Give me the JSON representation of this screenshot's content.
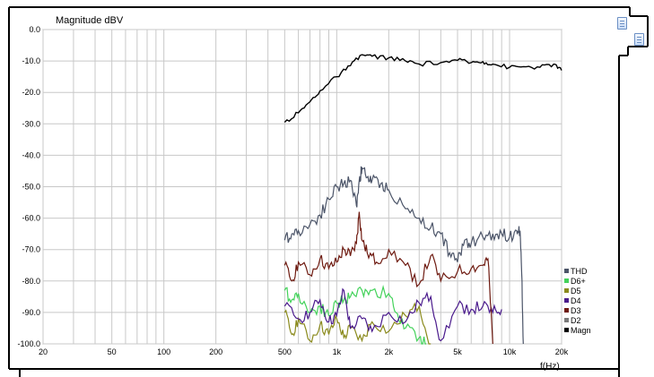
{
  "chart_data": {
    "type": "line",
    "title": "",
    "ylabel": "Magnitude dBV",
    "xlabel": "f(Hz)",
    "x_scale": "log",
    "xlim": [
      20,
      20000
    ],
    "ylim": [
      -100,
      0
    ],
    "grid": true,
    "legend_position": "bottom-right",
    "y_ticks": [
      "0.0",
      "-10.0",
      "-20.0",
      "-30.0",
      "-40.0",
      "-50.0",
      "-60.0",
      "-70.0",
      "-80.0",
      "-90.0",
      "-100.0"
    ],
    "x_ticks": [
      {
        "value": 20,
        "label": "20"
      },
      {
        "value": 50,
        "label": "50"
      },
      {
        "value": 100,
        "label": "100"
      },
      {
        "value": 200,
        "label": "200"
      },
      {
        "value": 500,
        "label": "500"
      },
      {
        "value": 1000,
        "label": "1k"
      },
      {
        "value": 2000,
        "label": "2k"
      },
      {
        "value": 5000,
        "label": "5k"
      },
      {
        "value": 10000,
        "label": "10k"
      },
      {
        "value": 20000,
        "label": "20k"
      }
    ],
    "series": [
      {
        "name": "Magn",
        "color": "#000000",
        "x": [
          500,
          600,
          700,
          800,
          1000,
          1200,
          1400,
          1600,
          2000,
          2500,
          3000,
          4000,
          5000,
          6000,
          7000,
          8000,
          10000,
          12000,
          15000,
          18000,
          20000
        ],
        "y": [
          -29.5,
          -26.5,
          -23.0,
          -19.5,
          -15.0,
          -11.5,
          -8.0,
          -8.5,
          -9.0,
          -10.0,
          -11.0,
          -10.5,
          -9.8,
          -10.5,
          -10.2,
          -11.0,
          -12.0,
          -11.8,
          -12.0,
          -11.0,
          -13.0
        ]
      },
      {
        "name": "THD",
        "color": "#4b5468",
        "x": [
          500,
          550,
          600,
          700,
          800,
          900,
          1000,
          1100,
          1200,
          1300,
          1350,
          1400,
          1500,
          1600,
          1800,
          2000,
          2500,
          3000,
          3500,
          4000,
          4500,
          5000,
          5500,
          6000,
          7000,
          8000,
          9000,
          10000,
          11000,
          11500,
          11800,
          12000
        ],
        "y": [
          -67,
          -65,
          -64,
          -62,
          -59,
          -54,
          -50,
          -49,
          -48,
          -56,
          -48,
          -44,
          -47,
          -48,
          -49,
          -51,
          -57,
          -60,
          -63,
          -65,
          -71,
          -74,
          -67,
          -68,
          -66,
          -65,
          -65,
          -66,
          -64,
          -64,
          -80,
          -100
        ]
      },
      {
        "name": "D6+",
        "color": "#43d25a",
        "x": [
          500,
          550,
          600,
          700,
          800,
          900,
          1000,
          1100,
          1200,
          1400,
          1600,
          2000,
          2200,
          2500,
          3000,
          3300
        ],
        "y": [
          -83,
          -86,
          -84,
          -90,
          -88,
          -91,
          -87,
          -86,
          -85,
          -83,
          -83,
          -84,
          -90,
          -95,
          -98,
          -100
        ]
      },
      {
        "name": "D5",
        "color": "#8a8a1c",
        "x": [
          500,
          550,
          600,
          700,
          800,
          900,
          1000,
          1100,
          1200,
          1400,
          1600,
          2000,
          2500,
          3000,
          3500
        ],
        "y": [
          -90,
          -97,
          -92,
          -99,
          -94,
          -97,
          -92,
          -98,
          -95,
          -99,
          -93,
          -96,
          -91,
          -88,
          -100
        ]
      },
      {
        "name": "D4",
        "color": "#4a1a8c",
        "x": [
          500,
          600,
          700,
          800,
          900,
          1000,
          1100,
          1200,
          1400,
          1600,
          2000,
          2500,
          3000,
          3500,
          4000,
          5000,
          6000,
          7000,
          8000,
          9000
        ],
        "y": [
          -88,
          -92,
          -90,
          -86,
          -93,
          -91,
          -83,
          -95,
          -92,
          -96,
          -90,
          -93,
          -87,
          -85,
          -99,
          -88,
          -89,
          -88,
          -90,
          -89
        ]
      },
      {
        "name": "D3",
        "color": "#6e1a10",
        "x": [
          500,
          550,
          600,
          700,
          800,
          900,
          1000,
          1100,
          1200,
          1300,
          1350,
          1400,
          1500,
          1700,
          2000,
          2500,
          3000,
          3500,
          4000,
          5000,
          6000,
          7000,
          7500,
          8000
        ],
        "y": [
          -75,
          -80,
          -74,
          -78,
          -73,
          -76,
          -74,
          -70,
          -72,
          -68,
          -58,
          -67,
          -71,
          -74,
          -70,
          -75,
          -81,
          -72,
          -80,
          -77,
          -76,
          -75,
          -73,
          -100
        ]
      },
      {
        "name": "D2",
        "color": "#7a7a7a",
        "x": [],
        "y": []
      }
    ]
  }
}
